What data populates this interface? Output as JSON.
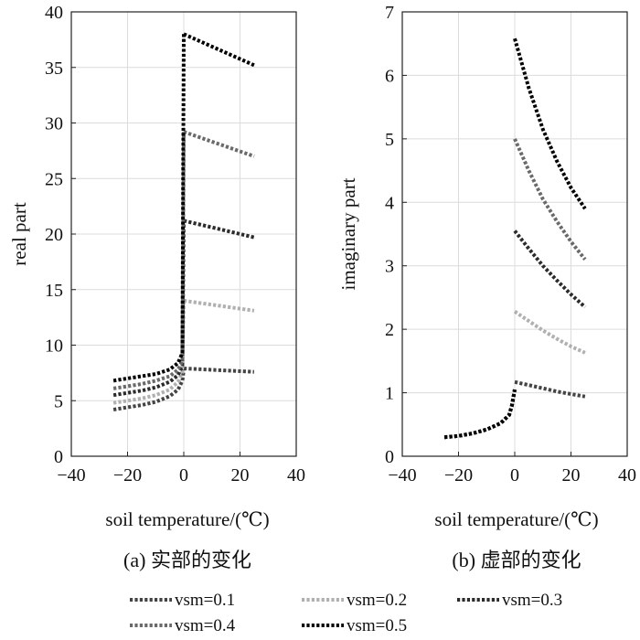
{
  "chart_data": [
    {
      "type": "line",
      "title": "",
      "caption": "(a) 实部的变化",
      "xlabel": "soil temperature/(℃)",
      "ylabel": "real part",
      "xlim": [
        -40,
        40
      ],
      "ylim": [
        0,
        40
      ],
      "xticks": [
        -40,
        -20,
        0,
        20,
        40
      ],
      "yticks": [
        0,
        5,
        10,
        15,
        20,
        25,
        30,
        35,
        40
      ],
      "xtick_labels": [
        "−40",
        "−20",
        "0",
        "20",
        "40"
      ],
      "ytick_labels": [
        "0",
        "5",
        "10",
        "15",
        "20",
        "25",
        "30",
        "35",
        "40"
      ],
      "grid": true,
      "series": [
        {
          "name": "vsm=0.1",
          "frozen": {
            "x": [
              -25,
              -20,
              -15,
              -10,
              -5,
              -2,
              -0.5,
              0
            ],
            "y": [
              4.2,
              4.4,
              4.6,
              4.9,
              5.4,
              6.0,
              6.8,
              7.8
            ]
          },
          "thawed": {
            "x": [
              0,
              25
            ],
            "y": [
              7.9,
              7.6
            ]
          }
        },
        {
          "name": "vsm=0.2",
          "frozen": {
            "x": [
              -25,
              -20,
              -15,
              -10,
              -5,
              -2,
              -0.5,
              0
            ],
            "y": [
              4.8,
              5.0,
              5.2,
              5.5,
              6.0,
              6.7,
              7.6,
              14.0
            ]
          },
          "thawed": {
            "x": [
              0,
              25
            ],
            "y": [
              14.0,
              13.1
            ]
          }
        },
        {
          "name": "vsm=0.3",
          "frozen": {
            "x": [
              -25,
              -20,
              -15,
              -10,
              -5,
              -2,
              -0.5,
              0
            ],
            "y": [
              5.5,
              5.7,
              5.9,
              6.2,
              6.7,
              7.3,
              8.2,
              21.2
            ]
          },
          "thawed": {
            "x": [
              0,
              25
            ],
            "y": [
              21.2,
              19.7
            ]
          }
        },
        {
          "name": "vsm=0.4",
          "frozen": {
            "x": [
              -25,
              -20,
              -15,
              -10,
              -5,
              -2,
              -0.5,
              0
            ],
            "y": [
              6.1,
              6.3,
              6.5,
              6.8,
              7.2,
              7.8,
              8.6,
              29.2
            ]
          },
          "thawed": {
            "x": [
              0,
              25
            ],
            "y": [
              29.2,
              27.0
            ]
          }
        },
        {
          "name": "vsm=0.5",
          "frozen": {
            "x": [
              -25,
              -20,
              -15,
              -10,
              -5,
              -2,
              -0.5,
              0
            ],
            "y": [
              6.8,
              7.0,
              7.2,
              7.4,
              7.8,
              8.4,
              9.3,
              38.0
            ]
          },
          "thawed": {
            "x": [
              0,
              25
            ],
            "y": [
              38.0,
              35.2
            ]
          }
        }
      ]
    },
    {
      "type": "line",
      "title": "",
      "caption": "(b) 虚部的变化",
      "xlabel": "soil temperature/(℃)",
      "ylabel": "imaginary part",
      "xlim": [
        -40,
        40
      ],
      "ylim": [
        0,
        7
      ],
      "xticks": [
        -40,
        -20,
        0,
        20,
        40
      ],
      "yticks": [
        0,
        1,
        2,
        3,
        4,
        5,
        6,
        7
      ],
      "xtick_labels": [
        "−40",
        "−20",
        "0",
        "20",
        "40"
      ],
      "ytick_labels": [
        "0",
        "1",
        "2",
        "3",
        "4",
        "5",
        "6",
        "7"
      ],
      "grid": true,
      "series": [
        {
          "name": "vsm=0.1",
          "frozen": {
            "x": [
              -25,
              -20,
              -15,
              -10,
              -5,
              -2,
              -1,
              0
            ],
            "y": [
              0.3,
              0.32,
              0.36,
              0.42,
              0.52,
              0.65,
              0.8,
              1.05
            ]
          },
          "thawed": {
            "x": [
              0,
              5,
              10,
              15,
              20,
              25
            ],
            "y": [
              1.17,
              1.12,
              1.07,
              1.02,
              0.98,
              0.94
            ]
          }
        },
        {
          "name": "vsm=0.2",
          "frozen": {
            "x": [
              -25,
              -20,
              -15,
              -10,
              -5,
              -2,
              -1,
              0
            ],
            "y": [
              0.3,
              0.32,
              0.36,
              0.42,
              0.52,
              0.65,
              0.8,
              1.05
            ]
          },
          "thawed": {
            "x": [
              0,
              5,
              10,
              15,
              20,
              25
            ],
            "y": [
              2.28,
              2.13,
              1.98,
              1.85,
              1.73,
              1.63
            ]
          }
        },
        {
          "name": "vsm=0.3",
          "frozen": {
            "x": [
              -25,
              -20,
              -15,
              -10,
              -5,
              -2,
              -1,
              0
            ],
            "y": [
              0.3,
              0.32,
              0.36,
              0.42,
              0.52,
              0.65,
              0.8,
              1.05
            ]
          },
          "thawed": {
            "x": [
              0,
              5,
              10,
              15,
              20,
              25
            ],
            "y": [
              3.55,
              3.27,
              3.0,
              2.77,
              2.55,
              2.35
            ]
          }
        },
        {
          "name": "vsm=0.4",
          "frozen": {
            "x": [
              -25,
              -20,
              -15,
              -10,
              -5,
              -2,
              -1,
              0
            ],
            "y": [
              0.3,
              0.32,
              0.36,
              0.42,
              0.52,
              0.65,
              0.8,
              1.05
            ]
          },
          "thawed": {
            "x": [
              0,
              5,
              10,
              15,
              20,
              25
            ],
            "y": [
              5.0,
              4.5,
              4.05,
              3.7,
              3.38,
              3.1
            ]
          }
        },
        {
          "name": "vsm=0.5",
          "frozen": {
            "x": [
              -25,
              -20,
              -15,
              -10,
              -5,
              -2,
              -1,
              0
            ],
            "y": [
              0.3,
              0.32,
              0.36,
              0.42,
              0.52,
              0.65,
              0.8,
              1.05
            ]
          },
          "thawed": {
            "x": [
              0,
              5,
              10,
              15,
              20,
              25
            ],
            "y": [
              6.58,
              5.8,
              5.15,
              4.65,
              4.23,
              3.9
            ]
          }
        }
      ]
    }
  ],
  "legend": {
    "placement": "bottom",
    "entries": [
      {
        "label": "vsm=0.1",
        "color": "#444444"
      },
      {
        "label": "vsm=0.2",
        "color": "#b0b0b0"
      },
      {
        "label": "vsm=0.3",
        "color": "#2b2b2b"
      },
      {
        "label": "vsm=0.4",
        "color": "#6a6a6a"
      },
      {
        "label": "vsm=0.5",
        "color": "#000000"
      }
    ]
  }
}
